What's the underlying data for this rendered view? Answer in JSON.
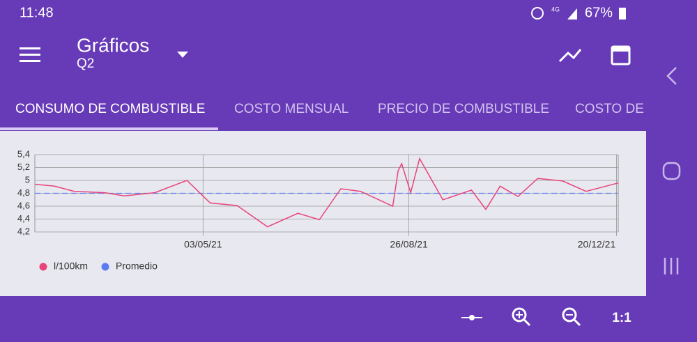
{
  "status_bar": {
    "time": "11:48",
    "network": "4G",
    "battery": "67%"
  },
  "app_bar": {
    "title": "Gráficos",
    "subtitle": "Q2"
  },
  "tabs": [
    "CONSUMO DE COMBUSTIBLE",
    "COSTO MENSUAL",
    "PRECIO DE COMBUSTIBLE",
    "COSTO DE"
  ],
  "chart_data": {
    "type": "line",
    "x": [
      "2021-01-29",
      "2021-02-09",
      "2021-02-20",
      "2021-03-09",
      "2021-03-20",
      "2021-04-06",
      "2021-04-24",
      "2021-05-07",
      "2021-05-22",
      "2021-06-08",
      "2021-06-25",
      "2021-07-07",
      "2021-07-19",
      "2021-07-30",
      "2021-08-17",
      "2021-08-20",
      "2021-08-22",
      "2021-08-27",
      "2021-09-01",
      "2021-09-14",
      "2021-09-30",
      "2021-10-08",
      "2021-10-16",
      "2021-10-26",
      "2021-11-06",
      "2021-11-20",
      "2021-12-03",
      "2021-12-21"
    ],
    "series": [
      {
        "name": "l/100km",
        "color": "#e8447a",
        "values": [
          4.94,
          4.91,
          4.83,
          4.81,
          4.76,
          4.81,
          5.0,
          4.65,
          4.61,
          4.28,
          4.49,
          4.39,
          4.87,
          4.83,
          4.6,
          5.15,
          5.26,
          4.81,
          5.34,
          4.7,
          4.85,
          4.55,
          4.91,
          4.75,
          5.03,
          4.99,
          4.83,
          4.96
        ]
      },
      {
        "name": "Promedio",
        "color": "#5b7cf0",
        "dashed": true,
        "values": [
          4.8,
          4.8,
          4.8,
          4.8,
          4.8,
          4.8,
          4.8,
          4.8,
          4.8,
          4.8,
          4.8,
          4.8,
          4.8,
          4.8,
          4.8,
          4.8,
          4.8,
          4.8,
          4.8,
          4.8,
          4.8,
          4.8,
          4.8,
          4.8,
          4.8,
          4.8,
          4.8,
          4.8
        ]
      }
    ],
    "xlim": [
      "2021-01-29",
      "2021-12-21"
    ],
    "xticks": [
      {
        "value": "2021-05-03",
        "label": "03/05/21"
      },
      {
        "value": "2021-08-26",
        "label": "26/08/21"
      },
      {
        "value": "2021-12-20",
        "label": "20/12/21"
      }
    ],
    "ylim": [
      4.2,
      5.4
    ],
    "yticks": [
      {
        "value": 4.2,
        "label": "4,2"
      },
      {
        "value": 4.4,
        "label": "4,4"
      },
      {
        "value": 4.6,
        "label": "4,6"
      },
      {
        "value": 4.8,
        "label": "4,8"
      },
      5,
      {
        "value": 5.2,
        "label": "5,2"
      },
      {
        "value": 5.4,
        "label": "5,4"
      }
    ],
    "grid": true,
    "legend": "lower left"
  },
  "toolbar": {
    "reset_zoom": "1:1"
  }
}
